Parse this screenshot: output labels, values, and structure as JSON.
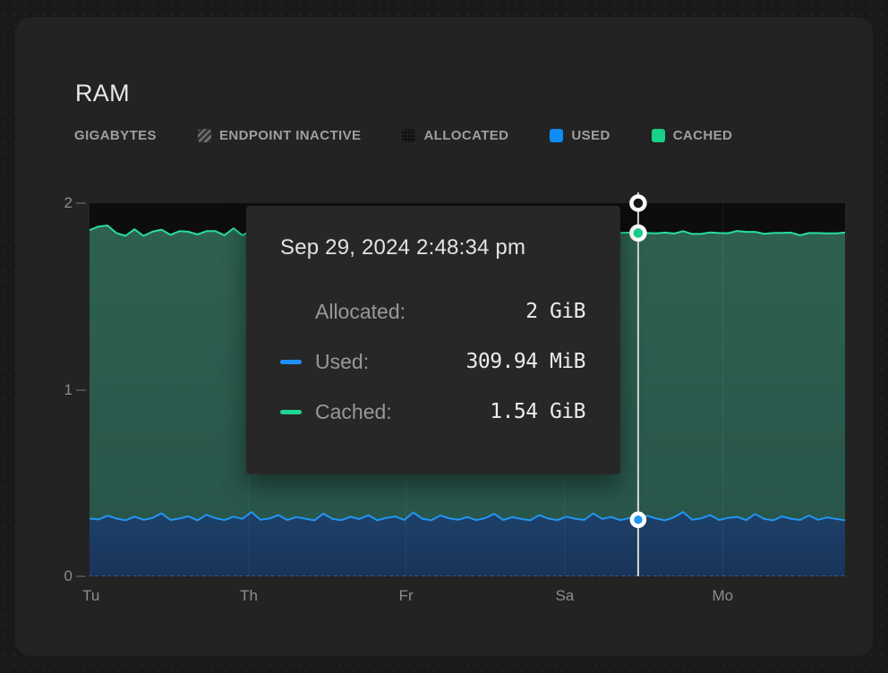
{
  "card": {
    "title": "RAM"
  },
  "legend": {
    "unit_label": "GIGABYTES",
    "items": [
      {
        "label": "ENDPOINT INACTIVE",
        "swatch": "hatched"
      },
      {
        "label": "ALLOCATED",
        "swatch": "solid-dark",
        "color": "#121212"
      },
      {
        "label": "USED",
        "swatch": "solid",
        "color": "#0d8cf5"
      },
      {
        "label": "CACHED",
        "swatch": "solid",
        "color": "#17d189"
      }
    ]
  },
  "tooltip": {
    "timestamp": "Sep 29, 2024 2:48:34 pm",
    "rows": [
      {
        "label": "Allocated:",
        "value": "2 GiB",
        "swatch_color": null
      },
      {
        "label": "Used:",
        "value": "309.94 MiB",
        "swatch_color": "#1f8fff"
      },
      {
        "label": "Cached:",
        "value": "1.54 GiB",
        "swatch_color": "#1fd692"
      }
    ]
  },
  "chart_data": {
    "type": "area",
    "stacked": true,
    "title": "RAM",
    "ylabel": "GIGABYTES",
    "xlabel": "",
    "ylim": [
      0,
      2
    ],
    "yticks": [
      {
        "label": "0",
        "value": 0
      },
      {
        "label": "1",
        "value": 1
      },
      {
        "label": "2",
        "value": 2
      }
    ],
    "xticks": [
      {
        "label": "Tu",
        "pos": 0.002
      },
      {
        "label": "Th",
        "pos": 0.211
      },
      {
        "label": "Fr",
        "pos": 0.419
      },
      {
        "label": "Sa",
        "pos": 0.629
      },
      {
        "label": "Mo",
        "pos": 0.838
      }
    ],
    "grid": "faint-vertical-lines-at-day-ticks",
    "legend_position": "top",
    "cursor": {
      "index": 61,
      "timestamp": "Sep 29, 2024 2:48:34 pm",
      "allocated": "2 GiB",
      "used": "309.94 MiB",
      "cached": "1.54 GiB"
    },
    "series": [
      {
        "name": "Used",
        "unit": "GiB",
        "line_color": "#2196f3",
        "fill_top": "#1e4068",
        "fill_bottom": "#19345a",
        "values": [
          0.31,
          0.305,
          0.325,
          0.31,
          0.3,
          0.32,
          0.303,
          0.312,
          0.338,
          0.302,
          0.31,
          0.322,
          0.3,
          0.33,
          0.312,
          0.301,
          0.32,
          0.308,
          0.345,
          0.303,
          0.31,
          0.328,
          0.302,
          0.318,
          0.309,
          0.3,
          0.336,
          0.308,
          0.301,
          0.319,
          0.307,
          0.327,
          0.3,
          0.313,
          0.321,
          0.302,
          0.342,
          0.309,
          0.3,
          0.326,
          0.311,
          0.303,
          0.318,
          0.301,
          0.312,
          0.335,
          0.302,
          0.317,
          0.308,
          0.3,
          0.328,
          0.31,
          0.301,
          0.32,
          0.309,
          0.302,
          0.337,
          0.308,
          0.318,
          0.301,
          0.312,
          0.303,
          0.325,
          0.31,
          0.3,
          0.317,
          0.345,
          0.303,
          0.311,
          0.328,
          0.302,
          0.313,
          0.319,
          0.301,
          0.334,
          0.308,
          0.3,
          0.321,
          0.309,
          0.302,
          0.326,
          0.303,
          0.316,
          0.308,
          0.3
        ]
      },
      {
        "name": "Cached",
        "unit": "GiB",
        "line_color": "#26df9a",
        "fill_top": "#2e6150",
        "fill_bottom": "#27544a",
        "values": [
          1.545,
          1.57,
          1.555,
          1.53,
          1.525,
          1.54,
          1.522,
          1.535,
          1.52,
          1.528,
          1.54,
          1.525,
          1.532,
          1.52,
          1.538,
          1.527,
          1.545,
          1.52,
          1.51,
          1.535,
          1.528,
          1.515,
          1.532,
          1.524,
          1.54,
          1.53,
          1.512,
          1.528,
          1.544,
          1.522,
          1.536,
          1.518,
          1.53,
          1.545,
          1.524,
          1.534,
          1.51,
          1.53,
          1.542,
          1.518,
          1.532,
          1.525,
          1.54,
          1.528,
          1.516,
          1.508,
          1.535,
          1.522,
          1.53,
          1.544,
          1.515,
          1.532,
          1.526,
          1.52,
          1.538,
          1.528,
          1.51,
          1.535,
          1.522,
          1.54,
          1.53,
          1.537,
          1.515,
          1.528,
          1.542,
          1.52,
          1.505,
          1.532,
          1.524,
          1.515,
          1.538,
          1.526,
          1.532,
          1.545,
          1.512,
          1.528,
          1.54,
          1.52,
          1.533,
          1.526,
          1.514,
          1.537,
          1.522,
          1.53,
          1.542
        ]
      },
      {
        "name": "Allocated",
        "unit": "GiB",
        "fill": "#0d0d0d",
        "constant_value": 2
      }
    ]
  },
  "colors": {
    "page_bg": "#191919",
    "card_bg": "#232323",
    "tooltip_bg": "#272727",
    "crosshair": "#d8d8d8",
    "axis_text": "#8d8d8d",
    "legend_text": "#9f9fa1",
    "title_text": "#e9e9e9",
    "grid_line": "rgba(255,255,255,0.055)",
    "baseline_dash": "#55719f"
  }
}
